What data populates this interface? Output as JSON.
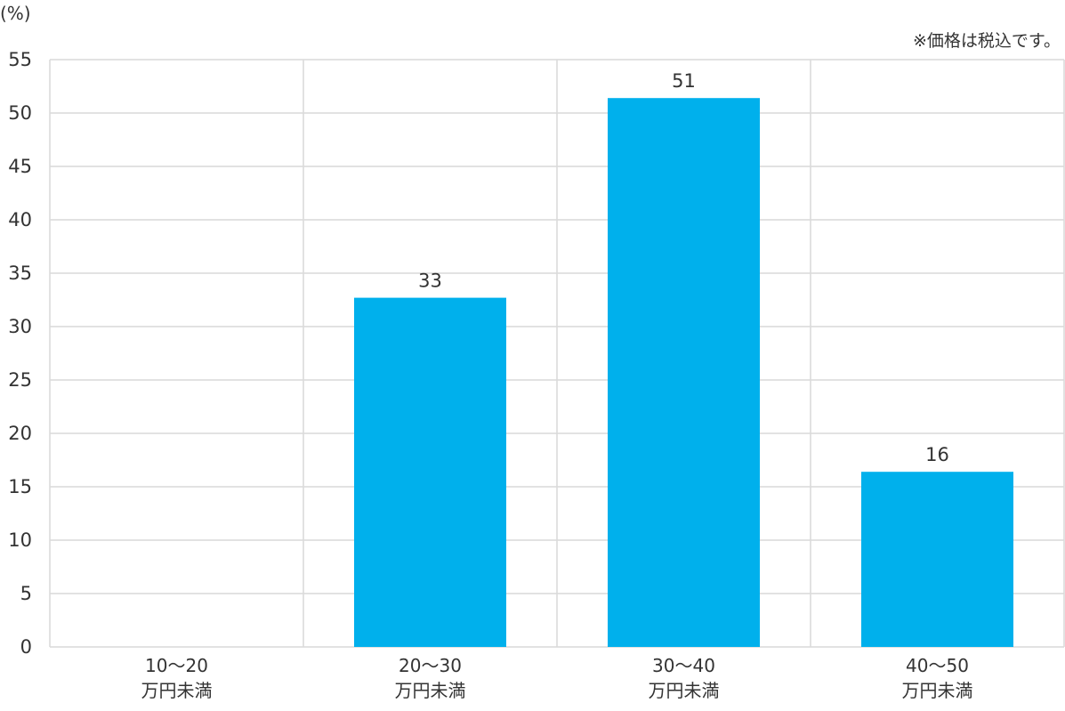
{
  "chart_data": {
    "type": "bar",
    "unit_label": "(%)",
    "note": "※価格は税込です。",
    "categories": [
      [
        "10〜20",
        "万円未満"
      ],
      [
        "20〜30",
        "万円未満"
      ],
      [
        "30〜40",
        "万円未満"
      ],
      [
        "40〜50",
        "万円未満"
      ]
    ],
    "values": [
      0,
      32.7,
      51.4,
      16.4
    ],
    "data_labels": [
      "",
      "33",
      "51",
      "16"
    ],
    "ylim": [
      0,
      55
    ],
    "yticks": [
      0,
      5,
      10,
      15,
      20,
      25,
      30,
      35,
      40,
      45,
      50,
      55
    ],
    "grid": true,
    "bar_color": "#00b0ec",
    "grid_color": "#d9d9d9"
  }
}
